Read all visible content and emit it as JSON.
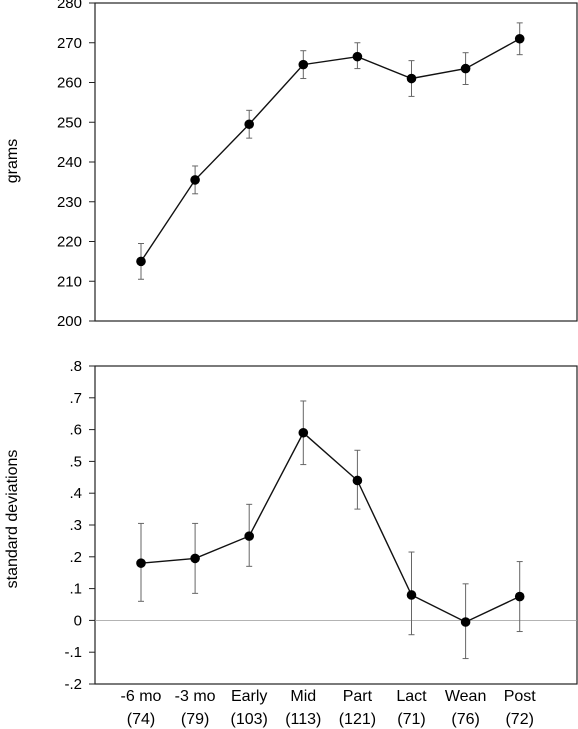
{
  "chart_data": [
    {
      "type": "line",
      "ylabel": "grams",
      "ylim": [
        200,
        280
      ],
      "yticks": [
        "200",
        "210",
        "220",
        "230",
        "240",
        "250",
        "260",
        "270",
        "280"
      ],
      "categories": [
        "-6 mo",
        "-3 mo",
        "Early",
        "Mid",
        "Part",
        "Lact",
        "Wean",
        "Post"
      ],
      "series": [
        {
          "values": [
            215,
            235.5,
            249.5,
            264.5,
            266.5,
            261,
            263.5,
            271
          ],
          "error_low": [
            210.5,
            232,
            246,
            261,
            263.5,
            256.5,
            259.5,
            267
          ],
          "error_high": [
            219.5,
            239,
            253,
            268,
            270,
            265.5,
            267.5,
            275
          ]
        }
      ],
      "grid": false
    },
    {
      "type": "line",
      "ylabel": "standard deviations",
      "ylim": [
        -0.2,
        0.8
      ],
      "yticks": [
        ".8",
        ".7",
        ".6",
        ".5",
        ".4",
        ".3",
        ".2",
        ".1",
        "0",
        "-.1",
        "-.2"
      ],
      "categories": [
        "-6 mo",
        "-3 mo",
        "Early",
        "Mid",
        "Part",
        "Lact",
        "Wean",
        "Post"
      ],
      "category_counts": [
        "(74)",
        "(79)",
        "(103)",
        "(113)",
        "(121)",
        "(71)",
        "(76)",
        "(72)"
      ],
      "series": [
        {
          "values": [
            0.18,
            0.195,
            0.265,
            0.59,
            0.44,
            0.08,
            -0.005,
            0.075
          ],
          "error_low": [
            0.06,
            0.085,
            0.17,
            0.49,
            0.35,
            -0.045,
            -0.12,
            -0.035
          ],
          "error_high": [
            0.305,
            0.305,
            0.365,
            0.69,
            0.535,
            0.215,
            0.115,
            0.185
          ]
        }
      ],
      "zero_line": true,
      "grid": false
    }
  ]
}
